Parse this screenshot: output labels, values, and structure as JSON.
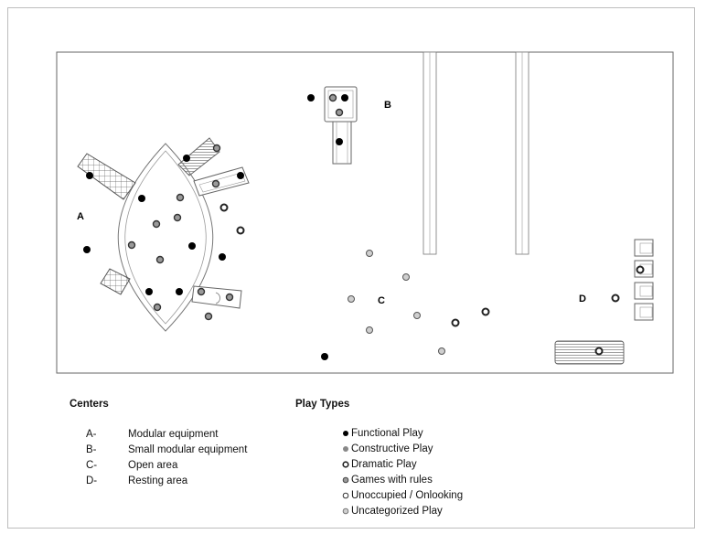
{
  "area_labels": [
    "A",
    "B",
    "C",
    "D"
  ],
  "legend": {
    "centers_title": "Centers",
    "centers": [
      {
        "code": "A-",
        "name": "Modular equipment"
      },
      {
        "code": "B-",
        "name": "Small modular equipment"
      },
      {
        "code": "C-",
        "name": "Open area"
      },
      {
        "code": "D-",
        "name": "Resting area"
      }
    ],
    "play_types_title": "Play Types",
    "play_types": [
      {
        "key": "functional",
        "label": "Functional Play"
      },
      {
        "key": "constructive",
        "label": "Constructive Play"
      },
      {
        "key": "dramatic",
        "label": "Dramatic Play"
      },
      {
        "key": "games",
        "label": "Games with rules"
      },
      {
        "key": "unoccupied",
        "label": "Unoccupied / Onlooking"
      },
      {
        "key": "uncategorized",
        "label": "Uncategorized Play"
      }
    ]
  },
  "colors": {
    "functional": "#000000",
    "constructive": "#888888",
    "dramatic": "#ffffff",
    "games": "#9a9a9a",
    "unoccupied": "#ffffff",
    "uncategorized": "#cfcfcf"
  }
}
